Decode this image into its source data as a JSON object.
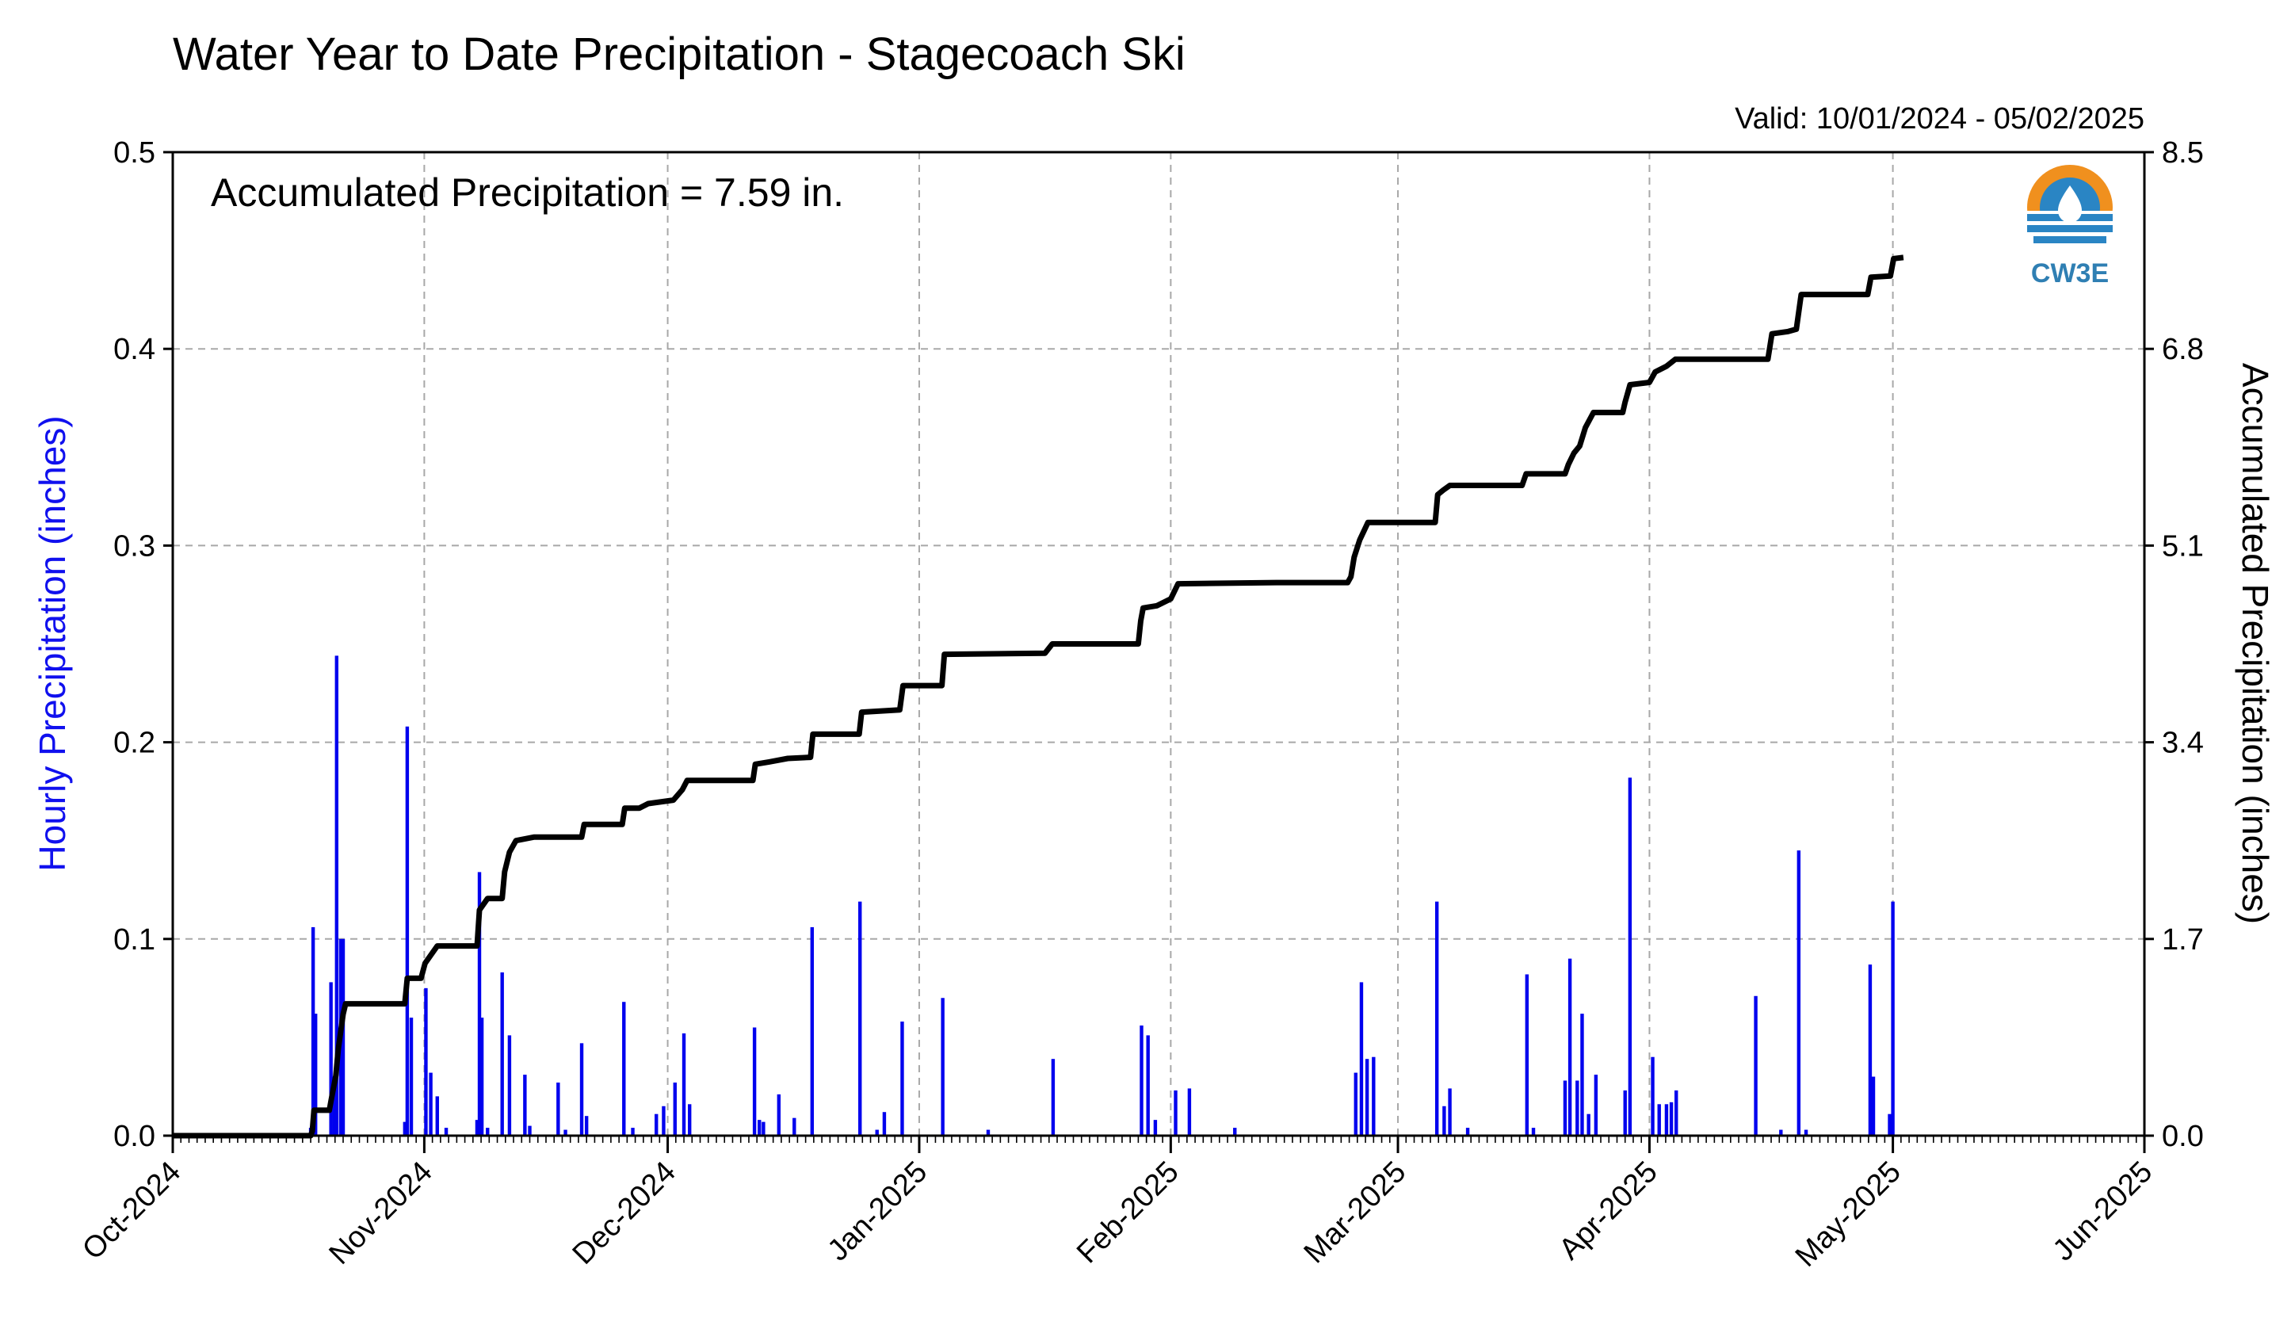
{
  "chart_data": {
    "type": "bar",
    "title": "Water Year to Date Precipitation - Stagecoach Ski",
    "valid_text": "Valid: 10/01/2024 - 05/02/2025",
    "annotation": "Accumulated Precipitation = 7.59 in.",
    "ylabel_left": "Hourly Precipitation (inches)",
    "ylabel_right": "Accumulated Precipitation (inches)",
    "logo_text": "CW3E",
    "left_ylim": [
      0,
      0.5
    ],
    "left_yticks": [
      "0.0",
      "0.1",
      "0.2",
      "0.3",
      "0.4",
      "0.5"
    ],
    "right_ylim": [
      0,
      8.5
    ],
    "right_yticks": [
      "0.0",
      "1.7",
      "3.4",
      "5.1",
      "6.8",
      "8.5"
    ],
    "x_range_days": [
      0,
      243
    ],
    "xticks": [
      {
        "label": "Oct-2024",
        "day": 0
      },
      {
        "label": "Nov-2024",
        "day": 31
      },
      {
        "label": "Dec-2024",
        "day": 61
      },
      {
        "label": "Jan-2025",
        "day": 92
      },
      {
        "label": "Feb-2025",
        "day": 123
      },
      {
        "label": "Mar-2025",
        "day": 151
      },
      {
        "label": "Apr-2025",
        "day": 182
      },
      {
        "label": "May-2025",
        "day": 212
      },
      {
        "label": "Jun-2025",
        "day": 243
      }
    ],
    "grid": true,
    "colors": {
      "bars": "#0000ee",
      "accumulated": "#000000",
      "left_axis_label": "#1010ee"
    },
    "series": [
      {
        "name": "Hourly Precipitation",
        "type": "bar",
        "points": [
          [
            17.0,
            0.004
          ],
          [
            17.3,
            0.106
          ],
          [
            17.6,
            0.062
          ],
          [
            19.5,
            0.078
          ],
          [
            19.9,
            0.03
          ],
          [
            20.2,
            0.244
          ],
          [
            20.7,
            0.1
          ],
          [
            21.0,
            0.1
          ],
          [
            28.6,
            0.007
          ],
          [
            28.9,
            0.208
          ],
          [
            29.4,
            0.06
          ],
          [
            31.2,
            0.075
          ],
          [
            31.8,
            0.032
          ],
          [
            32.6,
            0.02
          ],
          [
            33.7,
            0.004
          ],
          [
            37.5,
            0.008
          ],
          [
            37.8,
            0.134
          ],
          [
            38.1,
            0.06
          ],
          [
            38.8,
            0.004
          ],
          [
            40.6,
            0.083
          ],
          [
            41.5,
            0.051
          ],
          [
            43.4,
            0.031
          ],
          [
            44.0,
            0.005
          ],
          [
            47.5,
            0.027
          ],
          [
            48.4,
            0.003
          ],
          [
            50.4,
            0.047
          ],
          [
            51.0,
            0.01
          ],
          [
            55.6,
            0.068
          ],
          [
            56.7,
            0.004
          ],
          [
            59.6,
            0.011
          ],
          [
            60.5,
            0.015
          ],
          [
            61.9,
            0.027
          ],
          [
            63.0,
            0.052
          ],
          [
            63.7,
            0.016
          ],
          [
            71.7,
            0.055
          ],
          [
            72.3,
            0.008
          ],
          [
            72.8,
            0.007
          ],
          [
            74.7,
            0.021
          ],
          [
            76.6,
            0.009
          ],
          [
            78.8,
            0.106
          ],
          [
            84.7,
            0.119
          ],
          [
            86.8,
            0.003
          ],
          [
            87.7,
            0.012
          ],
          [
            89.9,
            0.058
          ],
          [
            94.9,
            0.07
          ],
          [
            100.5,
            0.003
          ],
          [
            108.5,
            0.039
          ],
          [
            119.4,
            0.056
          ],
          [
            120.2,
            0.051
          ],
          [
            121.1,
            0.008
          ],
          [
            123.6,
            0.023
          ],
          [
            125.3,
            0.024
          ],
          [
            130.9,
            0.004
          ],
          [
            145.8,
            0.032
          ],
          [
            146.5,
            0.078
          ],
          [
            147.2,
            0.039
          ],
          [
            148.0,
            0.04
          ],
          [
            155.8,
            0.119
          ],
          [
            156.7,
            0.015
          ],
          [
            157.4,
            0.024
          ],
          [
            159.6,
            0.004
          ],
          [
            166.9,
            0.082
          ],
          [
            167.7,
            0.004
          ],
          [
            171.6,
            0.028
          ],
          [
            172.2,
            0.09
          ],
          [
            173.1,
            0.028
          ],
          [
            173.7,
            0.062
          ],
          [
            174.5,
            0.011
          ],
          [
            175.4,
            0.031
          ],
          [
            179.0,
            0.023
          ],
          [
            179.6,
            0.182
          ],
          [
            182.4,
            0.04
          ],
          [
            183.2,
            0.016
          ],
          [
            184.1,
            0.016
          ],
          [
            184.7,
            0.017
          ],
          [
            185.3,
            0.023
          ],
          [
            195.1,
            0.071
          ],
          [
            198.2,
            0.003
          ],
          [
            200.4,
            0.145
          ],
          [
            201.3,
            0.003
          ],
          [
            209.2,
            0.087
          ],
          [
            209.6,
            0.03
          ],
          [
            211.6,
            0.011
          ],
          [
            212.0,
            0.119
          ]
        ]
      },
      {
        "name": "Accumulated Precipitation",
        "type": "step-line",
        "points": [
          [
            0,
            0
          ],
          [
            17,
            0
          ],
          [
            17.2,
            0.04
          ],
          [
            17.4,
            0.22
          ],
          [
            19.3,
            0.22
          ],
          [
            19.5,
            0.3
          ],
          [
            20.1,
            0.52
          ],
          [
            20.4,
            0.75
          ],
          [
            21.0,
            1.05
          ],
          [
            21.3,
            1.14
          ],
          [
            28.6,
            1.14
          ],
          [
            28.9,
            1.36
          ],
          [
            30.6,
            1.36
          ],
          [
            31.1,
            1.49
          ],
          [
            31.8,
            1.56
          ],
          [
            32.6,
            1.64
          ],
          [
            37.5,
            1.64
          ],
          [
            37.8,
            1.95
          ],
          [
            38.8,
            2.05
          ],
          [
            40.6,
            2.05
          ],
          [
            40.9,
            2.28
          ],
          [
            41.5,
            2.45
          ],
          [
            42.3,
            2.55
          ],
          [
            44.5,
            2.58
          ],
          [
            50.4,
            2.58
          ],
          [
            50.7,
            2.69
          ],
          [
            55.4,
            2.69
          ],
          [
            55.7,
            2.83
          ],
          [
            57.5,
            2.83
          ],
          [
            58.6,
            2.87
          ],
          [
            61.7,
            2.9
          ],
          [
            62.8,
            2.99
          ],
          [
            63.4,
            3.07
          ],
          [
            71.5,
            3.07
          ],
          [
            71.8,
            3.21
          ],
          [
            73.5,
            3.23
          ],
          [
            75.8,
            3.26
          ],
          [
            78.6,
            3.27
          ],
          [
            78.9,
            3.47
          ],
          [
            84.6,
            3.47
          ],
          [
            84.9,
            3.66
          ],
          [
            89.6,
            3.68
          ],
          [
            90.0,
            3.89
          ],
          [
            94.8,
            3.89
          ],
          [
            95.1,
            4.16
          ],
          [
            107.5,
            4.17
          ],
          [
            108.4,
            4.25
          ],
          [
            119.0,
            4.25
          ],
          [
            119.3,
            4.45
          ],
          [
            119.6,
            4.56
          ],
          [
            121.3,
            4.58
          ],
          [
            123.0,
            4.64
          ],
          [
            123.9,
            4.77
          ],
          [
            136.0,
            4.78
          ],
          [
            144.8,
            4.78
          ],
          [
            145.2,
            4.83
          ],
          [
            145.6,
            5.0
          ],
          [
            146.3,
            5.15
          ],
          [
            147.3,
            5.3
          ],
          [
            155.6,
            5.3
          ],
          [
            155.9,
            5.54
          ],
          [
            156.6,
            5.58
          ],
          [
            157.4,
            5.62
          ],
          [
            166.3,
            5.62
          ],
          [
            166.8,
            5.72
          ],
          [
            171.6,
            5.72
          ],
          [
            172.0,
            5.8
          ],
          [
            172.7,
            5.9
          ],
          [
            173.4,
            5.96
          ],
          [
            174.1,
            6.12
          ],
          [
            175.1,
            6.25
          ],
          [
            178.7,
            6.25
          ],
          [
            179.0,
            6.34
          ],
          [
            179.6,
            6.49
          ],
          [
            182.0,
            6.51
          ],
          [
            182.7,
            6.6
          ],
          [
            184.1,
            6.65
          ],
          [
            185.2,
            6.71
          ],
          [
            196.6,
            6.71
          ],
          [
            197.1,
            6.93
          ],
          [
            199.1,
            6.95
          ],
          [
            200.1,
            6.97
          ],
          [
            200.7,
            7.27
          ],
          [
            208.9,
            7.27
          ],
          [
            209.3,
            7.42
          ],
          [
            211.7,
            7.43
          ],
          [
            212.1,
            7.58
          ],
          [
            213.3,
            7.59
          ]
        ]
      }
    ]
  }
}
